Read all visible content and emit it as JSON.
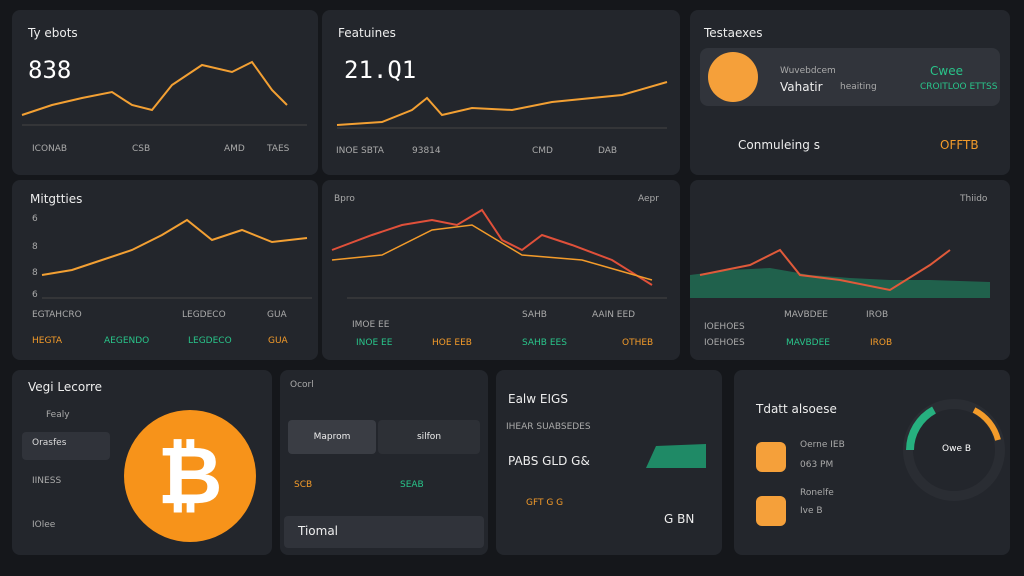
{
  "panels_top": [
    {
      "title": "Ty ebots",
      "value": "838",
      "footer": [
        "ICONAB",
        "CSB",
        "AMD",
        "TAES"
      ]
    },
    {
      "title": "Featuines",
      "value": "21.Q1",
      "footer": [
        "INOE SBTA",
        "93814",
        "CMD",
        "DAB"
      ]
    },
    {
      "title": "Testaexes",
      "card": {
        "label": "Wuvebdcem",
        "name": "Vahatir",
        "sub": "heaiting",
        "status": "Cwee",
        "note": "CROITLOO ETTSS"
      },
      "row": {
        "label": "Conmuleing s",
        "value": "OFFTB"
      }
    }
  ],
  "panels_mid": [
    {
      "title": "Mitgtties",
      "yaxis": [
        "6",
        "8",
        "8",
        "6"
      ],
      "footer_top": [
        "EGTAHCRO",
        "LEGDECO",
        "GUA"
      ],
      "footer": [
        "HEGTA",
        "AEGENDO",
        "LEGDECO",
        "GUA"
      ]
    },
    {
      "title": "Bpro",
      "right": "Aepr",
      "footer_top": [
        "IMOE EE",
        "SAHB",
        "AAIN EED"
      ],
      "footer": [
        "INOE EE",
        "HOE EEB",
        "SAHB EES",
        "OTHEB"
      ]
    },
    {
      "title": "Thiido",
      "footer_top": [
        "IOEHOES",
        "MAVBDEE",
        "IROB"
      ],
      "footer": [
        "IOEHOES",
        "MAVBDEE",
        "IROB"
      ]
    }
  ],
  "panels_bottom": [
    {
      "title": "Vegi Lecorre",
      "items": [
        "Fealy",
        "Orasfes",
        "IINESS",
        "IOlee"
      ],
      "logo": "₿"
    },
    {
      "title": "Ocorl",
      "tabs": [
        "Maprom",
        "silfon"
      ],
      "row": [
        "SCB",
        "SEAB"
      ],
      "button": "Tiomal"
    },
    {
      "title": "Ealw EIGS",
      "sub": "IHEAR SUABSEDES",
      "items": [
        "PABS GLD G&",
        "GFT G G"
      ],
      "value": "G BN"
    },
    {
      "title": "Tdatt alsoese",
      "items": [
        {
          "label": "Oerne IEB",
          "value": "063 PM"
        },
        {
          "label": "Ronelfe",
          "value": "Ive B"
        }
      ],
      "ring": "Owe B"
    }
  ]
}
